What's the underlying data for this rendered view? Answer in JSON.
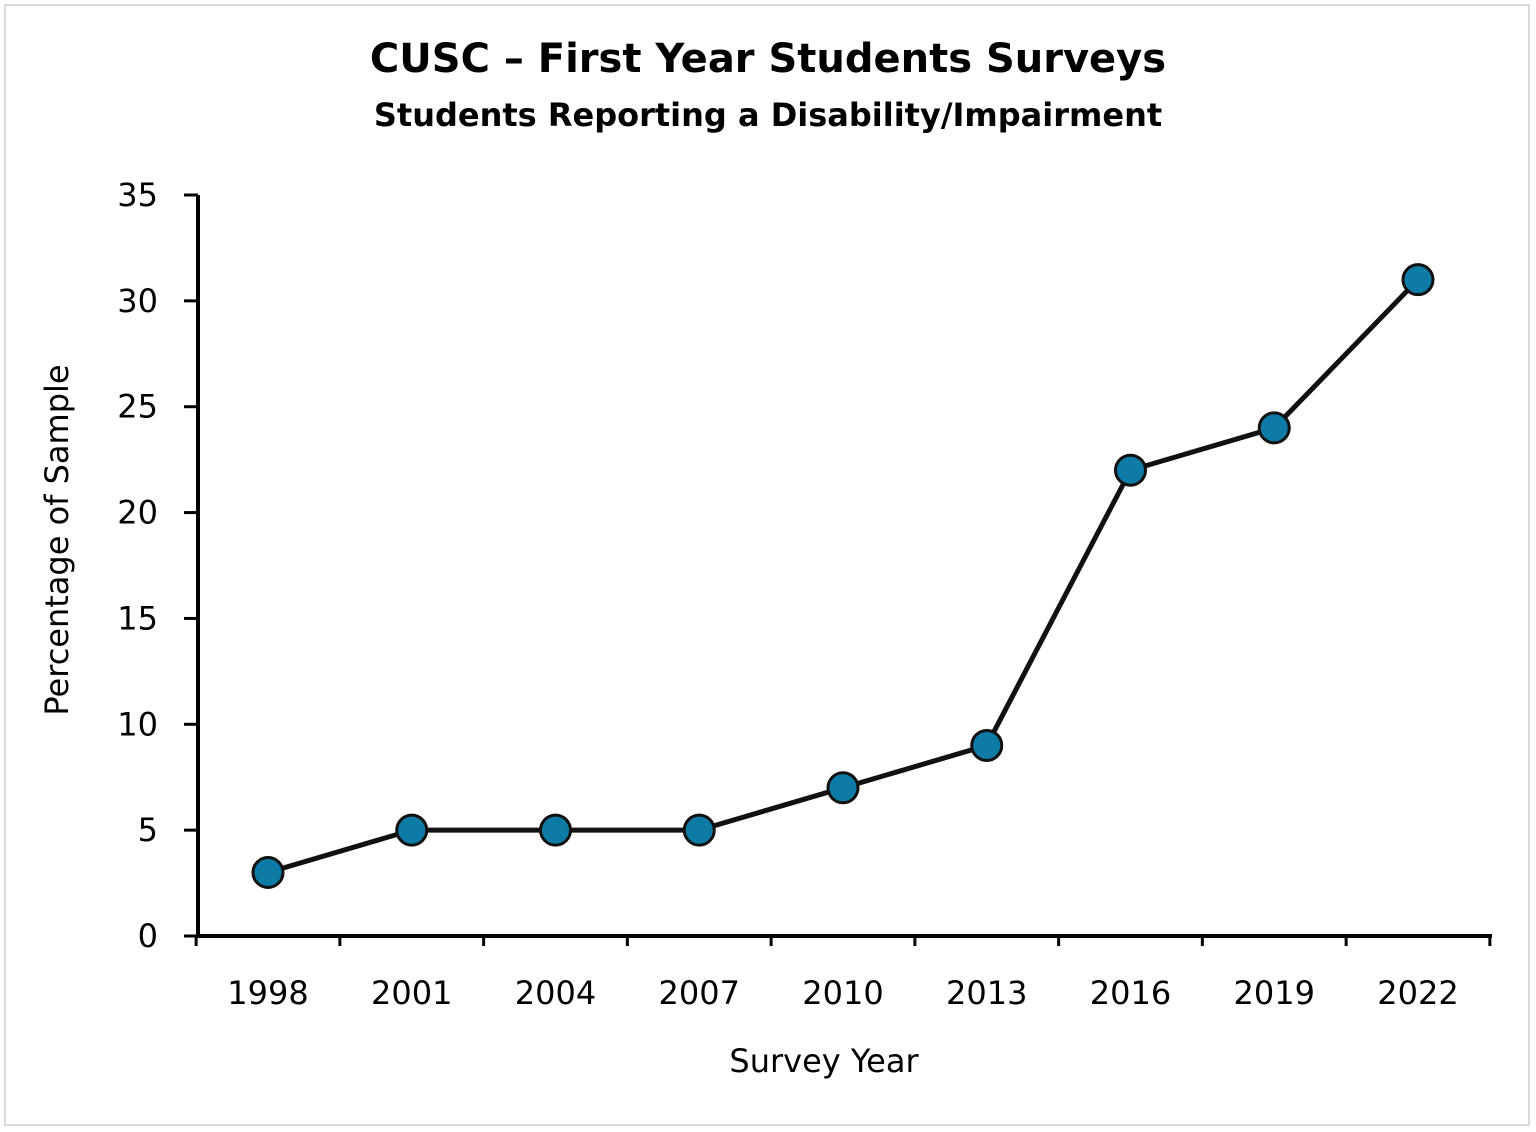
{
  "chart_data": {
    "type": "line",
    "title": "CUSC – First Year Students Surveys",
    "subtitle": "Students Reporting a Disability/Impairment",
    "xlabel": "Survey Year",
    "ylabel": "Percentage of Sample",
    "categories": [
      "1998",
      "2001",
      "2004",
      "2007",
      "2010",
      "2013",
      "2016",
      "2019",
      "2022"
    ],
    "series": [
      {
        "values": [
          3,
          5,
          5,
          5,
          7,
          9,
          22,
          24,
          31
        ]
      }
    ],
    "ylim": [
      0,
      35
    ],
    "yticks": [
      "0",
      "5",
      "10",
      "15",
      "20",
      "25",
      "30",
      "35"
    ],
    "grid": false,
    "legend": "none",
    "colors": {
      "marker_fill": "#0e7aa6",
      "line": "#111111",
      "axis": "#000000"
    }
  }
}
